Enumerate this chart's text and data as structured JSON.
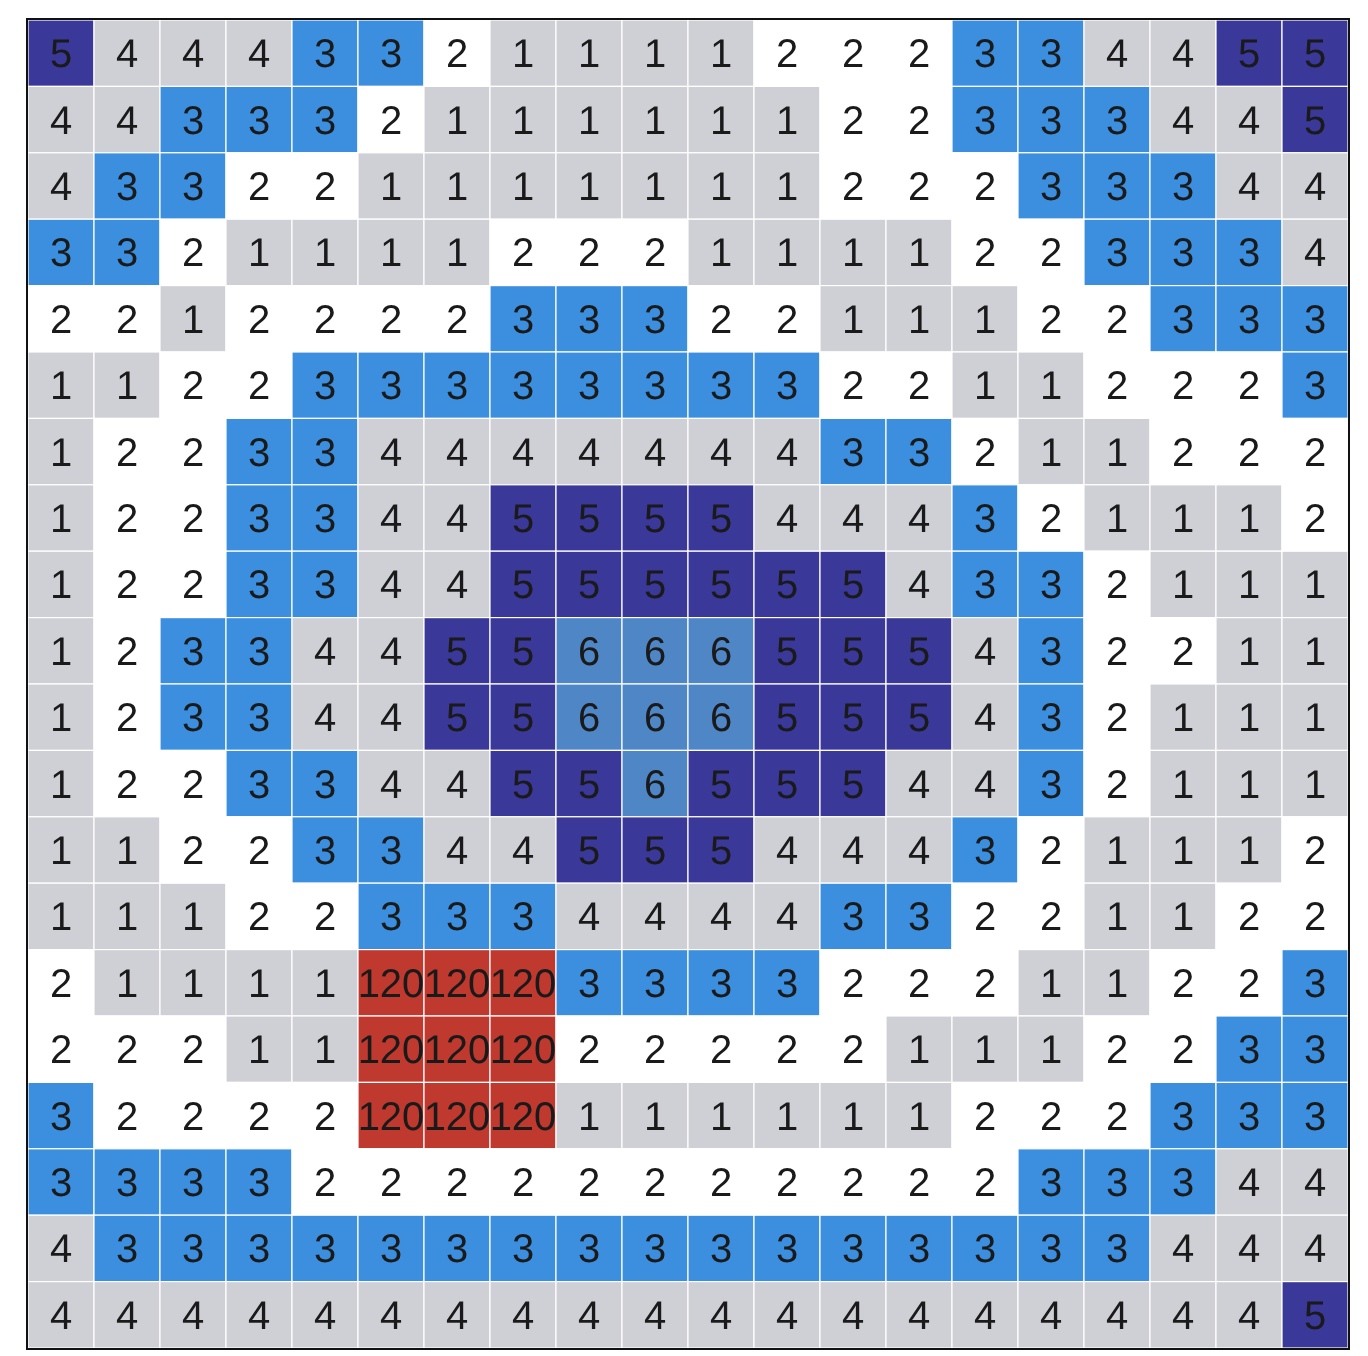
{
  "chart_data": {
    "type": "heatmap",
    "data_labels": true,
    "categories": [
      null,
      null,
      null,
      null,
      null,
      null,
      null,
      null,
      null,
      null,
      null,
      null,
      null,
      null,
      null,
      null,
      null,
      null,
      null,
      null
    ],
    "y_categories": [
      null,
      null,
      null,
      null,
      null,
      null,
      null,
      null,
      null,
      null,
      null,
      null,
      null,
      null,
      null,
      null,
      null,
      null,
      null,
      null
    ],
    "cells": [
      [
        5,
        4,
        4,
        4,
        3,
        3,
        2,
        1,
        1,
        1,
        1,
        2,
        2,
        2,
        3,
        3,
        4,
        4,
        5,
        5
      ],
      [
        4,
        4,
        3,
        3,
        3,
        2,
        1,
        1,
        1,
        1,
        1,
        1,
        2,
        2,
        3,
        3,
        3,
        4,
        4,
        5
      ],
      [
        4,
        3,
        3,
        2,
        2,
        1,
        1,
        1,
        1,
        1,
        1,
        1,
        2,
        2,
        2,
        3,
        3,
        3,
        4,
        4
      ],
      [
        3,
        3,
        2,
        1,
        1,
        1,
        1,
        2,
        2,
        2,
        1,
        1,
        1,
        1,
        2,
        2,
        3,
        3,
        3,
        4
      ],
      [
        2,
        2,
        1,
        2,
        2,
        2,
        2,
        3,
        3,
        3,
        2,
        2,
        1,
        1,
        1,
        2,
        2,
        3,
        3,
        3
      ],
      [
        1,
        1,
        2,
        2,
        3,
        3,
        3,
        3,
        3,
        3,
        3,
        3,
        2,
        2,
        1,
        1,
        2,
        2,
        2,
        3
      ],
      [
        1,
        2,
        2,
        3,
        3,
        4,
        4,
        4,
        4,
        4,
        4,
        4,
        3,
        3,
        2,
        1,
        1,
        2,
        2,
        2
      ],
      [
        1,
        2,
        2,
        3,
        3,
        4,
        4,
        5,
        5,
        5,
        5,
        4,
        4,
        4,
        3,
        2,
        1,
        1,
        1,
        2
      ],
      [
        1,
        2,
        2,
        3,
        3,
        4,
        4,
        5,
        5,
        5,
        5,
        5,
        5,
        4,
        3,
        3,
        2,
        1,
        1,
        1
      ],
      [
        1,
        2,
        3,
        3,
        4,
        4,
        5,
        5,
        6,
        6,
        6,
        5,
        5,
        5,
        4,
        3,
        2,
        2,
        1,
        1
      ],
      [
        1,
        2,
        3,
        3,
        4,
        4,
        5,
        5,
        6,
        6,
        6,
        5,
        5,
        5,
        4,
        3,
        2,
        1,
        1,
        1
      ],
      [
        1,
        2,
        2,
        3,
        3,
        4,
        4,
        5,
        5,
        6,
        5,
        5,
        5,
        4,
        4,
        3,
        2,
        1,
        1,
        1
      ],
      [
        1,
        1,
        2,
        2,
        3,
        3,
        4,
        4,
        5,
        5,
        5,
        4,
        4,
        4,
        3,
        2,
        1,
        1,
        1,
        2
      ],
      [
        1,
        1,
        1,
        2,
        2,
        3,
        3,
        3,
        4,
        4,
        4,
        4,
        3,
        3,
        2,
        2,
        1,
        1,
        2,
        2
      ],
      [
        2,
        1,
        1,
        1,
        1,
        120,
        120,
        120,
        3,
        3,
        3,
        3,
        2,
        2,
        2,
        1,
        1,
        2,
        2,
        3
      ],
      [
        2,
        2,
        2,
        1,
        1,
        120,
        120,
        120,
        2,
        2,
        2,
        2,
        2,
        1,
        1,
        1,
        2,
        2,
        3,
        3
      ],
      [
        3,
        2,
        2,
        2,
        2,
        120,
        120,
        120,
        1,
        1,
        1,
        1,
        1,
        1,
        2,
        2,
        2,
        3,
        3,
        3
      ],
      [
        3,
        3,
        3,
        3,
        2,
        2,
        2,
        2,
        2,
        2,
        2,
        2,
        2,
        2,
        2,
        3,
        3,
        3,
        4,
        4
      ],
      [
        4,
        3,
        3,
        3,
        3,
        3,
        3,
        3,
        3,
        3,
        3,
        3,
        3,
        3,
        3,
        3,
        3,
        4,
        4,
        4
      ],
      [
        4,
        4,
        4,
        4,
        4,
        4,
        4,
        4,
        4,
        4,
        4,
        4,
        4,
        4,
        4,
        4,
        4,
        4,
        4,
        5
      ]
    ],
    "colors": [
      [
        "#3a3898",
        "#cfd0d6",
        "#cfd0d6",
        "#cfd0d6",
        "#3b8fde",
        "#3b8fde",
        "#ffffff",
        "#cfd0d6",
        "#cfd0d6",
        "#cfd0d6",
        "#cfd0d6",
        "#ffffff",
        "#ffffff",
        "#ffffff",
        "#3b8fde",
        "#3b8fde",
        "#cfd0d6",
        "#cfd0d6",
        "#3a3898",
        "#3a3898"
      ],
      [
        "#cfd0d6",
        "#cfd0d6",
        "#3b8fde",
        "#3b8fde",
        "#3b8fde",
        "#ffffff",
        "#cfd0d6",
        "#cfd0d6",
        "#cfd0d6",
        "#cfd0d6",
        "#cfd0d6",
        "#cfd0d6",
        "#ffffff",
        "#ffffff",
        "#3b8fde",
        "#3b8fde",
        "#3b8fde",
        "#cfd0d6",
        "#cfd0d6",
        "#3a3898"
      ],
      [
        "#cfd0d6",
        "#3b8fde",
        "#3b8fde",
        "#ffffff",
        "#ffffff",
        "#cfd0d6",
        "#cfd0d6",
        "#cfd0d6",
        "#cfd0d6",
        "#cfd0d6",
        "#cfd0d6",
        "#cfd0d6",
        "#ffffff",
        "#ffffff",
        "#ffffff",
        "#3b8fde",
        "#3b8fde",
        "#3b8fde",
        "#cfd0d6",
        "#cfd0d6"
      ],
      [
        "#3b8fde",
        "#3b8fde",
        "#ffffff",
        "#cfd0d6",
        "#cfd0d6",
        "#cfd0d6",
        "#cfd0d6",
        "#ffffff",
        "#ffffff",
        "#ffffff",
        "#cfd0d6",
        "#cfd0d6",
        "#cfd0d6",
        "#cfd0d6",
        "#ffffff",
        "#ffffff",
        "#3b8fde",
        "#3b8fde",
        "#3b8fde",
        "#cfd0d6"
      ],
      [
        "#ffffff",
        "#ffffff",
        "#cfd0d6",
        "#ffffff",
        "#ffffff",
        "#ffffff",
        "#ffffff",
        "#3b8fde",
        "#3b8fde",
        "#3b8fde",
        "#ffffff",
        "#ffffff",
        "#cfd0d6",
        "#cfd0d6",
        "#cfd0d6",
        "#ffffff",
        "#ffffff",
        "#3b8fde",
        "#3b8fde",
        "#3b8fde"
      ],
      [
        "#cfd0d6",
        "#cfd0d6",
        "#ffffff",
        "#ffffff",
        "#3b8fde",
        "#3b8fde",
        "#3b8fde",
        "#3b8fde",
        "#3b8fde",
        "#3b8fde",
        "#3b8fde",
        "#3b8fde",
        "#ffffff",
        "#ffffff",
        "#cfd0d6",
        "#cfd0d6",
        "#ffffff",
        "#ffffff",
        "#ffffff",
        "#3b8fde"
      ],
      [
        "#cfd0d6",
        "#ffffff",
        "#ffffff",
        "#3b8fde",
        "#3b8fde",
        "#cfd0d6",
        "#cfd0d6",
        "#cfd0d6",
        "#cfd0d6",
        "#cfd0d6",
        "#cfd0d6",
        "#cfd0d6",
        "#3b8fde",
        "#3b8fde",
        "#ffffff",
        "#cfd0d6",
        "#cfd0d6",
        "#ffffff",
        "#ffffff",
        "#ffffff"
      ],
      [
        "#cfd0d6",
        "#ffffff",
        "#ffffff",
        "#3b8fde",
        "#3b8fde",
        "#cfd0d6",
        "#cfd0d6",
        "#3a3898",
        "#3a3898",
        "#3a3898",
        "#3a3898",
        "#cfd0d6",
        "#cfd0d6",
        "#cfd0d6",
        "#3b8fde",
        "#ffffff",
        "#cfd0d6",
        "#cfd0d6",
        "#cfd0d6",
        "#ffffff"
      ],
      [
        "#cfd0d6",
        "#ffffff",
        "#ffffff",
        "#3b8fde",
        "#3b8fde",
        "#cfd0d6",
        "#cfd0d6",
        "#3a3898",
        "#3a3898",
        "#3a3898",
        "#3a3898",
        "#3a3898",
        "#3a3898",
        "#cfd0d6",
        "#3b8fde",
        "#3b8fde",
        "#ffffff",
        "#cfd0d6",
        "#cfd0d6",
        "#cfd0d6"
      ],
      [
        "#cfd0d6",
        "#ffffff",
        "#3b8fde",
        "#3b8fde",
        "#cfd0d6",
        "#cfd0d6",
        "#3a3898",
        "#3a3898",
        "#4f86c6",
        "#4f86c6",
        "#4f86c6",
        "#3a3898",
        "#3a3898",
        "#3a3898",
        "#cfd0d6",
        "#3b8fde",
        "#ffffff",
        "#ffffff",
        "#cfd0d6",
        "#cfd0d6"
      ],
      [
        "#cfd0d6",
        "#ffffff",
        "#3b8fde",
        "#3b8fde",
        "#cfd0d6",
        "#cfd0d6",
        "#3a3898",
        "#3a3898",
        "#4f86c6",
        "#4f86c6",
        "#4f86c6",
        "#3a3898",
        "#3a3898",
        "#3a3898",
        "#cfd0d6",
        "#3b8fde",
        "#ffffff",
        "#cfd0d6",
        "#cfd0d6",
        "#cfd0d6"
      ],
      [
        "#cfd0d6",
        "#ffffff",
        "#ffffff",
        "#3b8fde",
        "#3b8fde",
        "#cfd0d6",
        "#cfd0d6",
        "#3a3898",
        "#3a3898",
        "#4f86c6",
        "#3a3898",
        "#3a3898",
        "#3a3898",
        "#cfd0d6",
        "#cfd0d6",
        "#3b8fde",
        "#ffffff",
        "#cfd0d6",
        "#cfd0d6",
        "#cfd0d6"
      ],
      [
        "#cfd0d6",
        "#cfd0d6",
        "#ffffff",
        "#ffffff",
        "#3b8fde",
        "#3b8fde",
        "#cfd0d6",
        "#cfd0d6",
        "#3a3898",
        "#3a3898",
        "#3a3898",
        "#cfd0d6",
        "#cfd0d6",
        "#cfd0d6",
        "#3b8fde",
        "#ffffff",
        "#cfd0d6",
        "#cfd0d6",
        "#cfd0d6",
        "#ffffff"
      ],
      [
        "#cfd0d6",
        "#cfd0d6",
        "#cfd0d6",
        "#ffffff",
        "#ffffff",
        "#3b8fde",
        "#3b8fde",
        "#3b8fde",
        "#cfd0d6",
        "#cfd0d6",
        "#cfd0d6",
        "#cfd0d6",
        "#3b8fde",
        "#3b8fde",
        "#ffffff",
        "#ffffff",
        "#cfd0d6",
        "#cfd0d6",
        "#ffffff",
        "#ffffff"
      ],
      [
        "#ffffff",
        "#cfd0d6",
        "#cfd0d6",
        "#cfd0d6",
        "#cfd0d6",
        "#c0392f",
        "#c0392f",
        "#c0392f",
        "#3b8fde",
        "#3b8fde",
        "#3b8fde",
        "#3b8fde",
        "#ffffff",
        "#ffffff",
        "#ffffff",
        "#cfd0d6",
        "#cfd0d6",
        "#ffffff",
        "#ffffff",
        "#3b8fde"
      ],
      [
        "#ffffff",
        "#ffffff",
        "#ffffff",
        "#cfd0d6",
        "#cfd0d6",
        "#c0392f",
        "#c0392f",
        "#c0392f",
        "#ffffff",
        "#ffffff",
        "#ffffff",
        "#ffffff",
        "#ffffff",
        "#cfd0d6",
        "#cfd0d6",
        "#cfd0d6",
        "#ffffff",
        "#ffffff",
        "#3b8fde",
        "#3b8fde"
      ],
      [
        "#3b8fde",
        "#ffffff",
        "#ffffff",
        "#ffffff",
        "#ffffff",
        "#c0392f",
        "#c0392f",
        "#c0392f",
        "#cfd0d6",
        "#cfd0d6",
        "#cfd0d6",
        "#cfd0d6",
        "#cfd0d6",
        "#cfd0d6",
        "#ffffff",
        "#ffffff",
        "#ffffff",
        "#3b8fde",
        "#3b8fde",
        "#3b8fde"
      ],
      [
        "#3b8fde",
        "#3b8fde",
        "#3b8fde",
        "#3b8fde",
        "#ffffff",
        "#ffffff",
        "#ffffff",
        "#ffffff",
        "#ffffff",
        "#ffffff",
        "#ffffff",
        "#ffffff",
        "#ffffff",
        "#ffffff",
        "#ffffff",
        "#3b8fde",
        "#3b8fde",
        "#3b8fde",
        "#cfd0d6",
        "#cfd0d6"
      ],
      [
        "#cfd0d6",
        "#3b8fde",
        "#3b8fde",
        "#3b8fde",
        "#3b8fde",
        "#3b8fde",
        "#3b8fde",
        "#3b8fde",
        "#3b8fde",
        "#3b8fde",
        "#3b8fde",
        "#3b8fde",
        "#3b8fde",
        "#3b8fde",
        "#3b8fde",
        "#3b8fde",
        "#3b8fde",
        "#cfd0d6",
        "#cfd0d6",
        "#cfd0d6"
      ],
      [
        "#cfd0d6",
        "#cfd0d6",
        "#cfd0d6",
        "#cfd0d6",
        "#cfd0d6",
        "#cfd0d6",
        "#cfd0d6",
        "#cfd0d6",
        "#cfd0d6",
        "#cfd0d6",
        "#cfd0d6",
        "#cfd0d6",
        "#cfd0d6",
        "#cfd0d6",
        "#cfd0d6",
        "#cfd0d6",
        "#cfd0d6",
        "#cfd0d6",
        "#cfd0d6",
        "#3a3898"
      ]
    ]
  }
}
